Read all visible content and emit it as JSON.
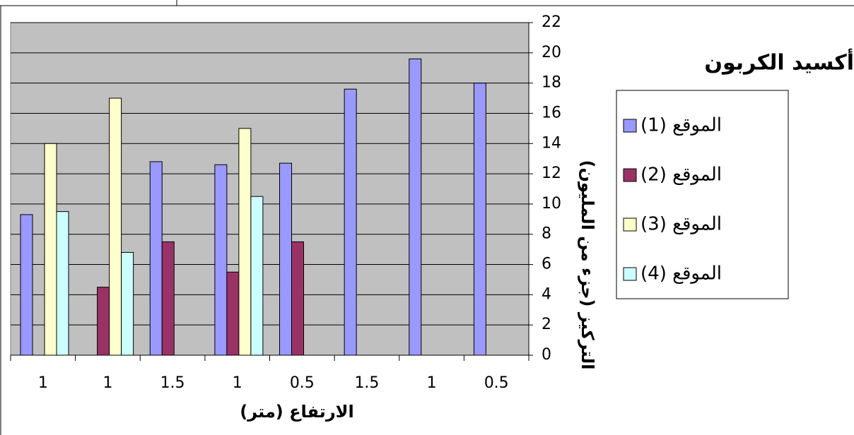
{
  "chart_data": {
    "type": "bar",
    "title": "أكسيد الكربون",
    "x_label": "(الارتفاع (متر",
    "y_label": "(التركيز (جزء من المليون",
    "categories": [
      "1",
      "1",
      "1.5",
      "1",
      "0.5",
      "1.5",
      "1",
      "0.5"
    ],
    "series": [
      {
        "name": "(الموقع (1",
        "color": "#9999ff",
        "values": [
          9.3,
          null,
          12.8,
          12.6,
          12.7,
          17.6,
          19.6,
          18
        ]
      },
      {
        "name": "(الموقع (2",
        "color": "#993366",
        "values": [
          null,
          4.5,
          7.5,
          5.5,
          7.5,
          null,
          null,
          null
        ]
      },
      {
        "name": "(الموقع (3",
        "color": "#ffffcc",
        "values": [
          14,
          17,
          null,
          15,
          null,
          null,
          null,
          null
        ]
      },
      {
        "name": "(الموقع (4",
        "color": "#ccffff",
        "values": [
          9.5,
          6.8,
          null,
          10.5,
          null,
          null,
          null,
          null
        ]
      }
    ],
    "ylim": [
      0,
      22
    ],
    "yticks": [
      0,
      2,
      4,
      6,
      8,
      10,
      12,
      14,
      16,
      18,
      20,
      22
    ],
    "grid": true,
    "legend": "right"
  }
}
